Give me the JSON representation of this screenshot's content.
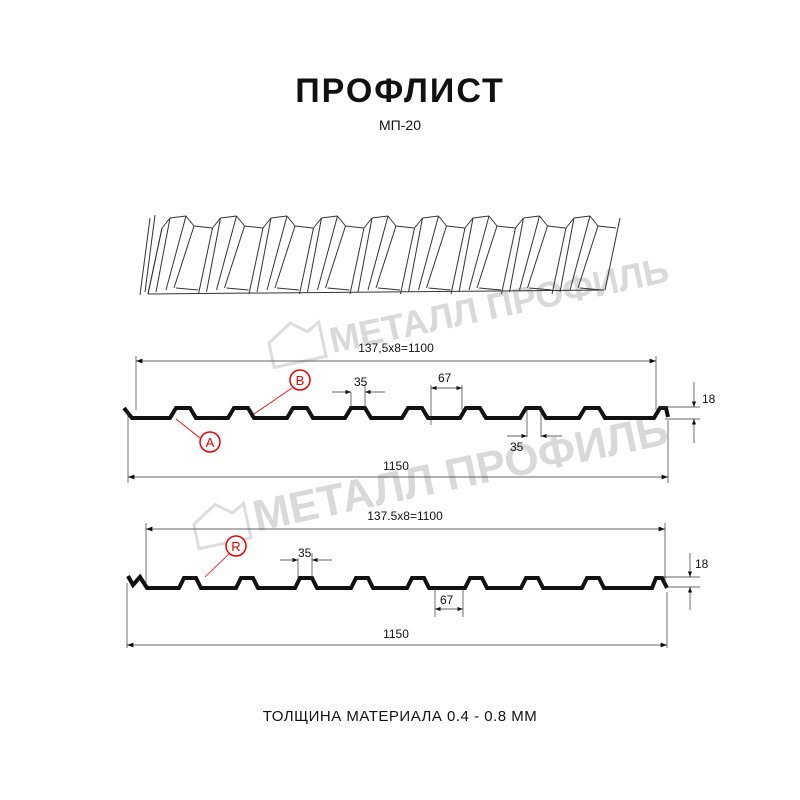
{
  "title": "ПРОФЛИСТ",
  "model": "МП-20",
  "watermark": "МЕТАЛЛ ПРОФИЛЬ",
  "profile1": {
    "overall": "137,5x8=1100",
    "total": "1150",
    "rib_top": "35",
    "rib_bottom": "35",
    "valley": "67",
    "height": "18",
    "labels": [
      "A",
      "B"
    ]
  },
  "profile2": {
    "overall": "137.5x8=1100",
    "total": "1150",
    "rib_top": "35",
    "valley": "67",
    "height": "18",
    "labels": [
      "R"
    ]
  },
  "footer": "ТОЛЩИНА МАТЕРИАЛА 0.4 - 0.8 ММ",
  "colors": {
    "profile": "#111111",
    "callout": "#e00000",
    "watermark": "#d9d9d9"
  }
}
